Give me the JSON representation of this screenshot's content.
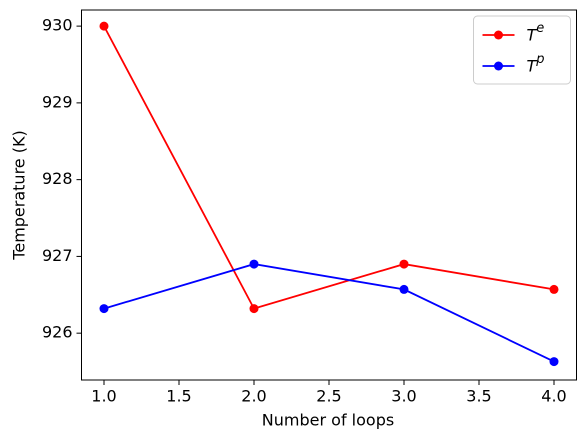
{
  "chart_data": {
    "type": "line",
    "x_label": "Number of loops",
    "y_label": "Temperature (K)",
    "x": [
      1,
      2,
      3,
      4
    ],
    "series": [
      {
        "name": "T^e",
        "color": "#ff0000",
        "values": [
          930.0,
          926.32,
          926.9,
          926.57
        ]
      },
      {
        "name": "T^p",
        "color": "#0000ff",
        "values": [
          926.32,
          926.9,
          926.57,
          925.63
        ]
      }
    ],
    "xlim": [
      0.85,
      4.15
    ],
    "xticks": [
      {
        "value": 1,
        "label": "1.0"
      },
      {
        "value": 1.5,
        "label": "1.5"
      },
      {
        "value": 2,
        "label": "2.0"
      },
      {
        "value": 2.5,
        "label": "2.5"
      },
      {
        "value": 3,
        "label": "3.0"
      },
      {
        "value": 3.5,
        "label": "3.5"
      },
      {
        "value": 4,
        "label": "4.0"
      }
    ],
    "ylim": [
      925.39,
      930.21
    ],
    "yticks": [
      926,
      927,
      928,
      929,
      930
    ],
    "legend": "upper right",
    "grid": false
  }
}
